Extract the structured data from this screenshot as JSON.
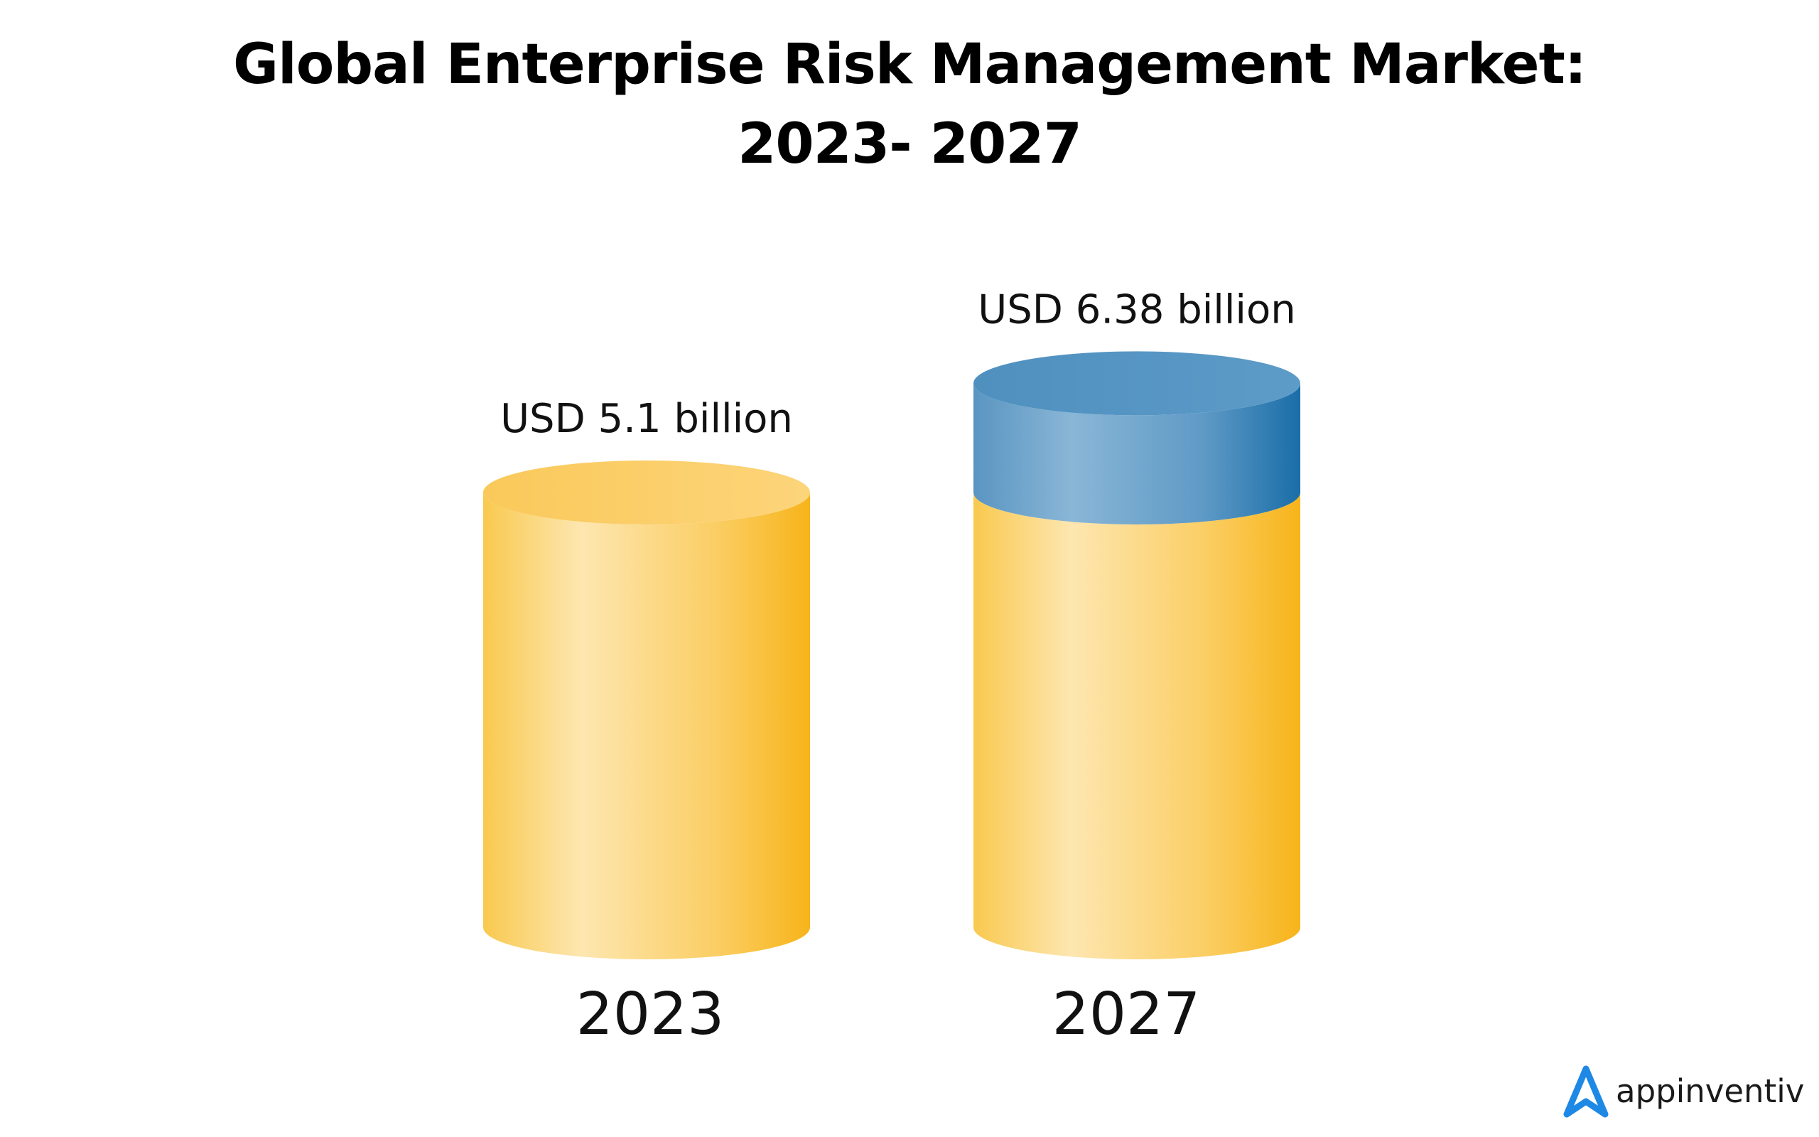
{
  "chart_data": {
    "type": "bar",
    "title_lines": [
      "Global Enterprise Risk Management Market:",
      "2023- 2027"
    ],
    "categories": [
      "2023",
      "2027"
    ],
    "values": [
      5.1,
      6.38
    ],
    "data_labels": [
      "USD 5.1 billion",
      "USD 6.38 billion"
    ],
    "unit": "USD billion",
    "colors": {
      "cylinder": "#f9c23c",
      "cylinder_highlight": "#fde4a8",
      "cylinder_shade": "#f7b41a",
      "growth_segment": "#5b9bc8",
      "growth_shade": "#1a6fa8"
    }
  },
  "brand": {
    "name": "appinventiv",
    "accent": "#1e88e5"
  }
}
